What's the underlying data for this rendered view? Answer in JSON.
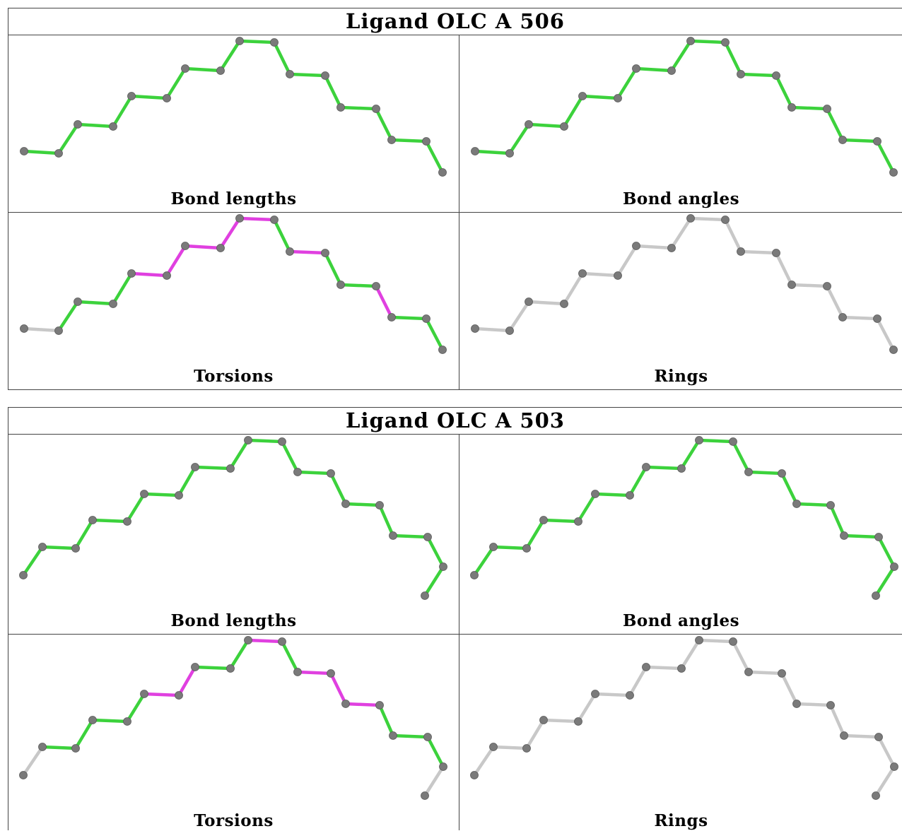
{
  "colors": {
    "ok": "#3cd23c",
    "outlier": "#e040e0",
    "neutral": "#c8c8c8",
    "atom": "#7a7a7a"
  },
  "ligands": [
    {
      "title": "Ligand OLC A 506",
      "panels": [
        {
          "label": "Bond lengths",
          "bonds": [
            "ok",
            "ok",
            "ok",
            "ok",
            "ok",
            "ok",
            "ok",
            "ok",
            "ok",
            "ok",
            "ok",
            "ok",
            "ok",
            "ok",
            "ok",
            "ok",
            "ok"
          ]
        },
        {
          "label": "Bond angles",
          "bonds": [
            "ok",
            "ok",
            "ok",
            "ok",
            "ok",
            "ok",
            "ok",
            "ok",
            "ok",
            "ok",
            "ok",
            "ok",
            "ok",
            "ok",
            "ok",
            "ok",
            "ok"
          ]
        },
        {
          "label": "Torsions",
          "bonds": [
            "neutral",
            "ok",
            "ok",
            "ok",
            "outlier",
            "outlier",
            "outlier",
            "outlier",
            "outlier",
            "ok",
            "outlier",
            "ok",
            "ok",
            "outlier",
            "ok",
            "ok",
            "neutral"
          ]
        },
        {
          "label": "Rings",
          "bonds": [
            "neutral",
            "neutral",
            "neutral",
            "neutral",
            "neutral",
            "neutral",
            "neutral",
            "neutral",
            "neutral",
            "neutral",
            "neutral",
            "neutral",
            "neutral",
            "neutral",
            "neutral",
            "neutral",
            "neutral"
          ]
        }
      ]
    },
    {
      "title": "Ligand OLC A 503",
      "panels": [
        {
          "label": "Bond lengths",
          "bonds": [
            "ok",
            "ok",
            "ok",
            "ok",
            "ok",
            "ok",
            "ok",
            "ok",
            "ok",
            "ok",
            "ok",
            "ok",
            "ok",
            "ok",
            "ok",
            "ok",
            "ok",
            "ok"
          ]
        },
        {
          "label": "Bond angles",
          "bonds": [
            "ok",
            "ok",
            "ok",
            "ok",
            "ok",
            "ok",
            "ok",
            "ok",
            "ok",
            "ok",
            "ok",
            "ok",
            "ok",
            "ok",
            "ok",
            "ok",
            "ok",
            "ok"
          ]
        },
        {
          "label": "Torsions",
          "bonds": [
            "neutral",
            "ok",
            "ok",
            "ok",
            "ok",
            "outlier",
            "outlier",
            "ok",
            "ok",
            "outlier",
            "ok",
            "outlier",
            "outlier",
            "outlier",
            "ok",
            "ok",
            "ok",
            "neutral"
          ]
        },
        {
          "label": "Rings",
          "bonds": [
            "neutral",
            "neutral",
            "neutral",
            "neutral",
            "neutral",
            "neutral",
            "neutral",
            "neutral",
            "neutral",
            "neutral",
            "neutral",
            "neutral",
            "neutral",
            "neutral",
            "neutral",
            "neutral",
            "neutral",
            "neutral"
          ]
        }
      ]
    }
  ]
}
